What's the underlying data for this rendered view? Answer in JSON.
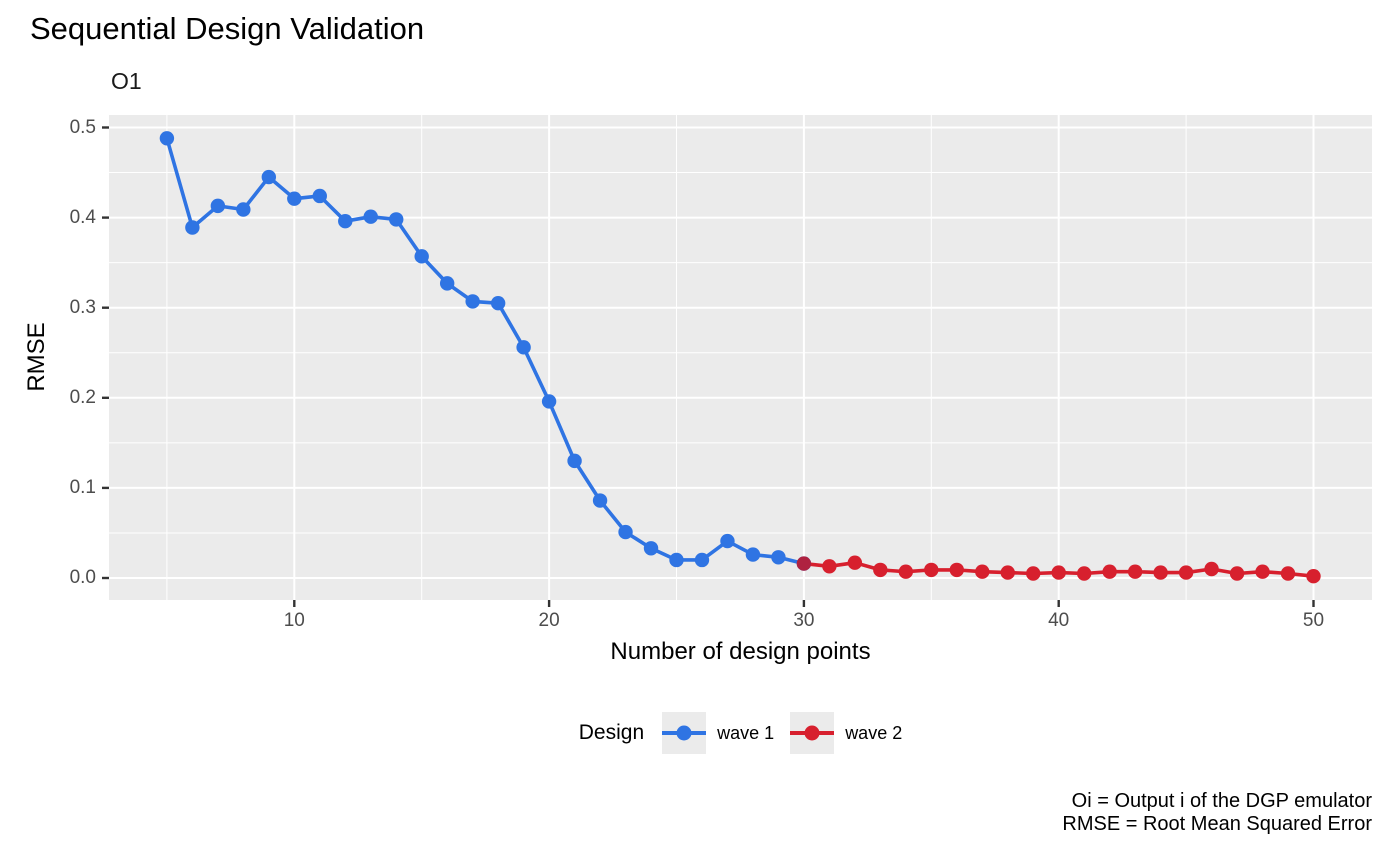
{
  "title": "Sequential Design Validation",
  "facet_label": "O1",
  "x_axis": {
    "title": "Number of design points",
    "tick_labels": [
      "10",
      "20",
      "30",
      "40",
      "50"
    ],
    "tick_values": [
      10,
      20,
      30,
      40,
      50
    ],
    "minor_tick_values": [
      5,
      15,
      25,
      35,
      45
    ]
  },
  "y_axis": {
    "title": "RMSE",
    "tick_labels": [
      "0.0",
      "0.1",
      "0.2",
      "0.3",
      "0.4",
      "0.5"
    ],
    "tick_values": [
      0,
      0.1,
      0.2,
      0.3,
      0.4,
      0.5
    ],
    "minor_tick_values": [
      0.05,
      0.15,
      0.25,
      0.35,
      0.45
    ]
  },
  "legend": {
    "title": "Design",
    "items": [
      {
        "label": "wave 1",
        "color": "#2f74e3"
      },
      {
        "label": "wave 2",
        "color": "#d7202e"
      }
    ]
  },
  "caption": {
    "line1": "Oi = Output i of the DGP emulator",
    "line2": "RMSE = Root Mean Squared Error"
  },
  "colors": {
    "panel_background": "#ebebeb",
    "grid_line": "#ffffff",
    "tick_mark": "#333333",
    "tick_label": "#4d4d4d",
    "wave1": "#2f74e3",
    "wave2": "#d7202e",
    "wave2_first_point": "#af2240"
  },
  "chart_data": {
    "type": "line",
    "title": "Sequential Design Validation",
    "facet": "O1",
    "xlabel": "Number of design points",
    "ylabel": "RMSE",
    "xlim": [
      2.7,
      52.3
    ],
    "ylim": [
      0,
      0.5
    ],
    "grid": true,
    "legend_position": "bottom",
    "series": [
      {
        "name": "wave 1",
        "color": "#2f74e3",
        "x": [
          5,
          6,
          7,
          8,
          9,
          10,
          11,
          12,
          13,
          14,
          15,
          16,
          17,
          18,
          19,
          20,
          21,
          22,
          23,
          24,
          25,
          26,
          27,
          28,
          29,
          30
        ],
        "y": [
          0.488,
          0.389,
          0.413,
          0.409,
          0.445,
          0.421,
          0.424,
          0.396,
          0.401,
          0.398,
          0.357,
          0.327,
          0.307,
          0.305,
          0.256,
          0.196,
          0.13,
          0.086,
          0.051,
          0.033,
          0.02,
          0.02,
          0.041,
          0.026,
          0.023,
          0.016
        ]
      },
      {
        "name": "wave 2",
        "color": "#d7202e",
        "x": [
          30,
          31,
          32,
          33,
          34,
          35,
          36,
          37,
          38,
          39,
          40,
          41,
          42,
          43,
          44,
          45,
          46,
          47,
          48,
          49,
          50
        ],
        "y": [
          0.016,
          0.013,
          0.017,
          0.009,
          0.007,
          0.009,
          0.009,
          0.007,
          0.006,
          0.005,
          0.006,
          0.005,
          0.007,
          0.007,
          0.006,
          0.006,
          0.01,
          0.005,
          0.007,
          0.005,
          0.002
        ]
      }
    ]
  }
}
